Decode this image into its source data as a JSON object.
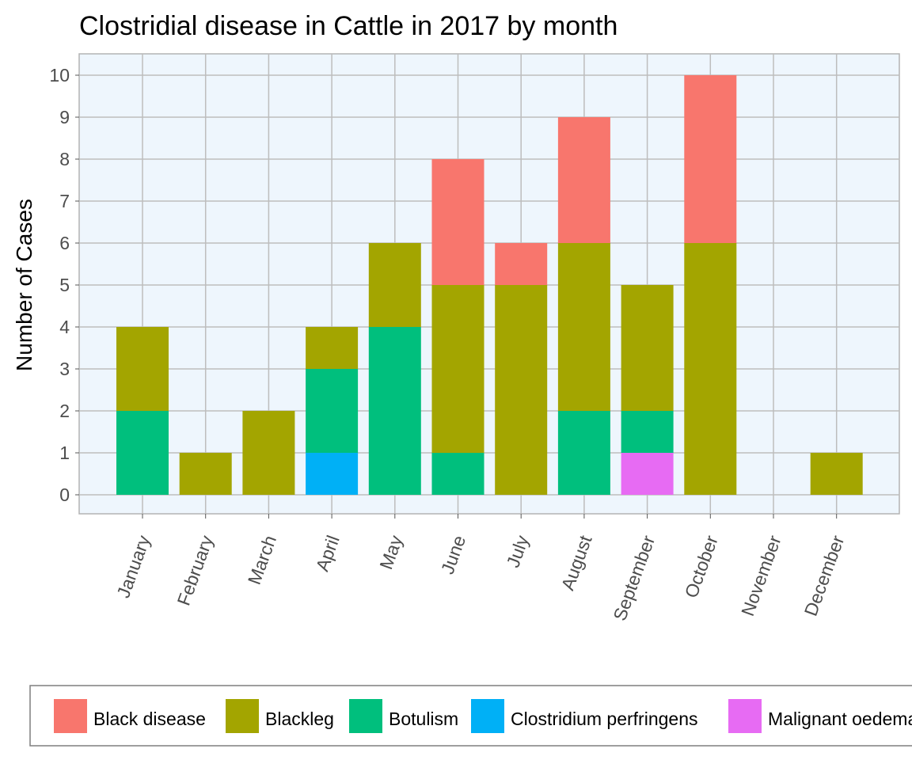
{
  "chart_data": {
    "type": "bar",
    "stacked": true,
    "title": "Clostridial disease in Cattle in 2017 by month",
    "xlabel": "",
    "ylabel": "Number of Cases",
    "categories": [
      "January",
      "February",
      "March",
      "April",
      "May",
      "June",
      "July",
      "August",
      "September",
      "October",
      "November",
      "December"
    ],
    "ylim": [
      0,
      10
    ],
    "yticks": [
      0,
      1,
      2,
      3,
      4,
      5,
      6,
      7,
      8,
      9,
      10
    ],
    "grid": true,
    "legend_position": "bottom",
    "panel_background": "#eef6fd",
    "series": [
      {
        "name": "Black disease",
        "color": "#f8766d",
        "values": [
          0,
          0,
          0,
          0,
          0,
          3,
          1,
          3,
          0,
          4,
          0,
          0
        ]
      },
      {
        "name": "Blackleg",
        "color": "#a3a500",
        "values": [
          2,
          1,
          2,
          1,
          2,
          4,
          5,
          4,
          3,
          6,
          0,
          1
        ]
      },
      {
        "name": "Botulism",
        "color": "#00bf7d",
        "values": [
          2,
          0,
          0,
          2,
          4,
          1,
          0,
          2,
          1,
          0,
          0,
          0
        ]
      },
      {
        "name": "Clostridium perfringens",
        "color": "#00b0f6",
        "values": [
          0,
          0,
          0,
          1,
          0,
          0,
          0,
          0,
          0,
          0,
          0,
          0
        ]
      },
      {
        "name": "Malignant oedema",
        "color": "#e76bf3",
        "values": [
          0,
          0,
          0,
          0,
          0,
          0,
          0,
          0,
          1,
          0,
          0,
          0
        ]
      }
    ]
  }
}
